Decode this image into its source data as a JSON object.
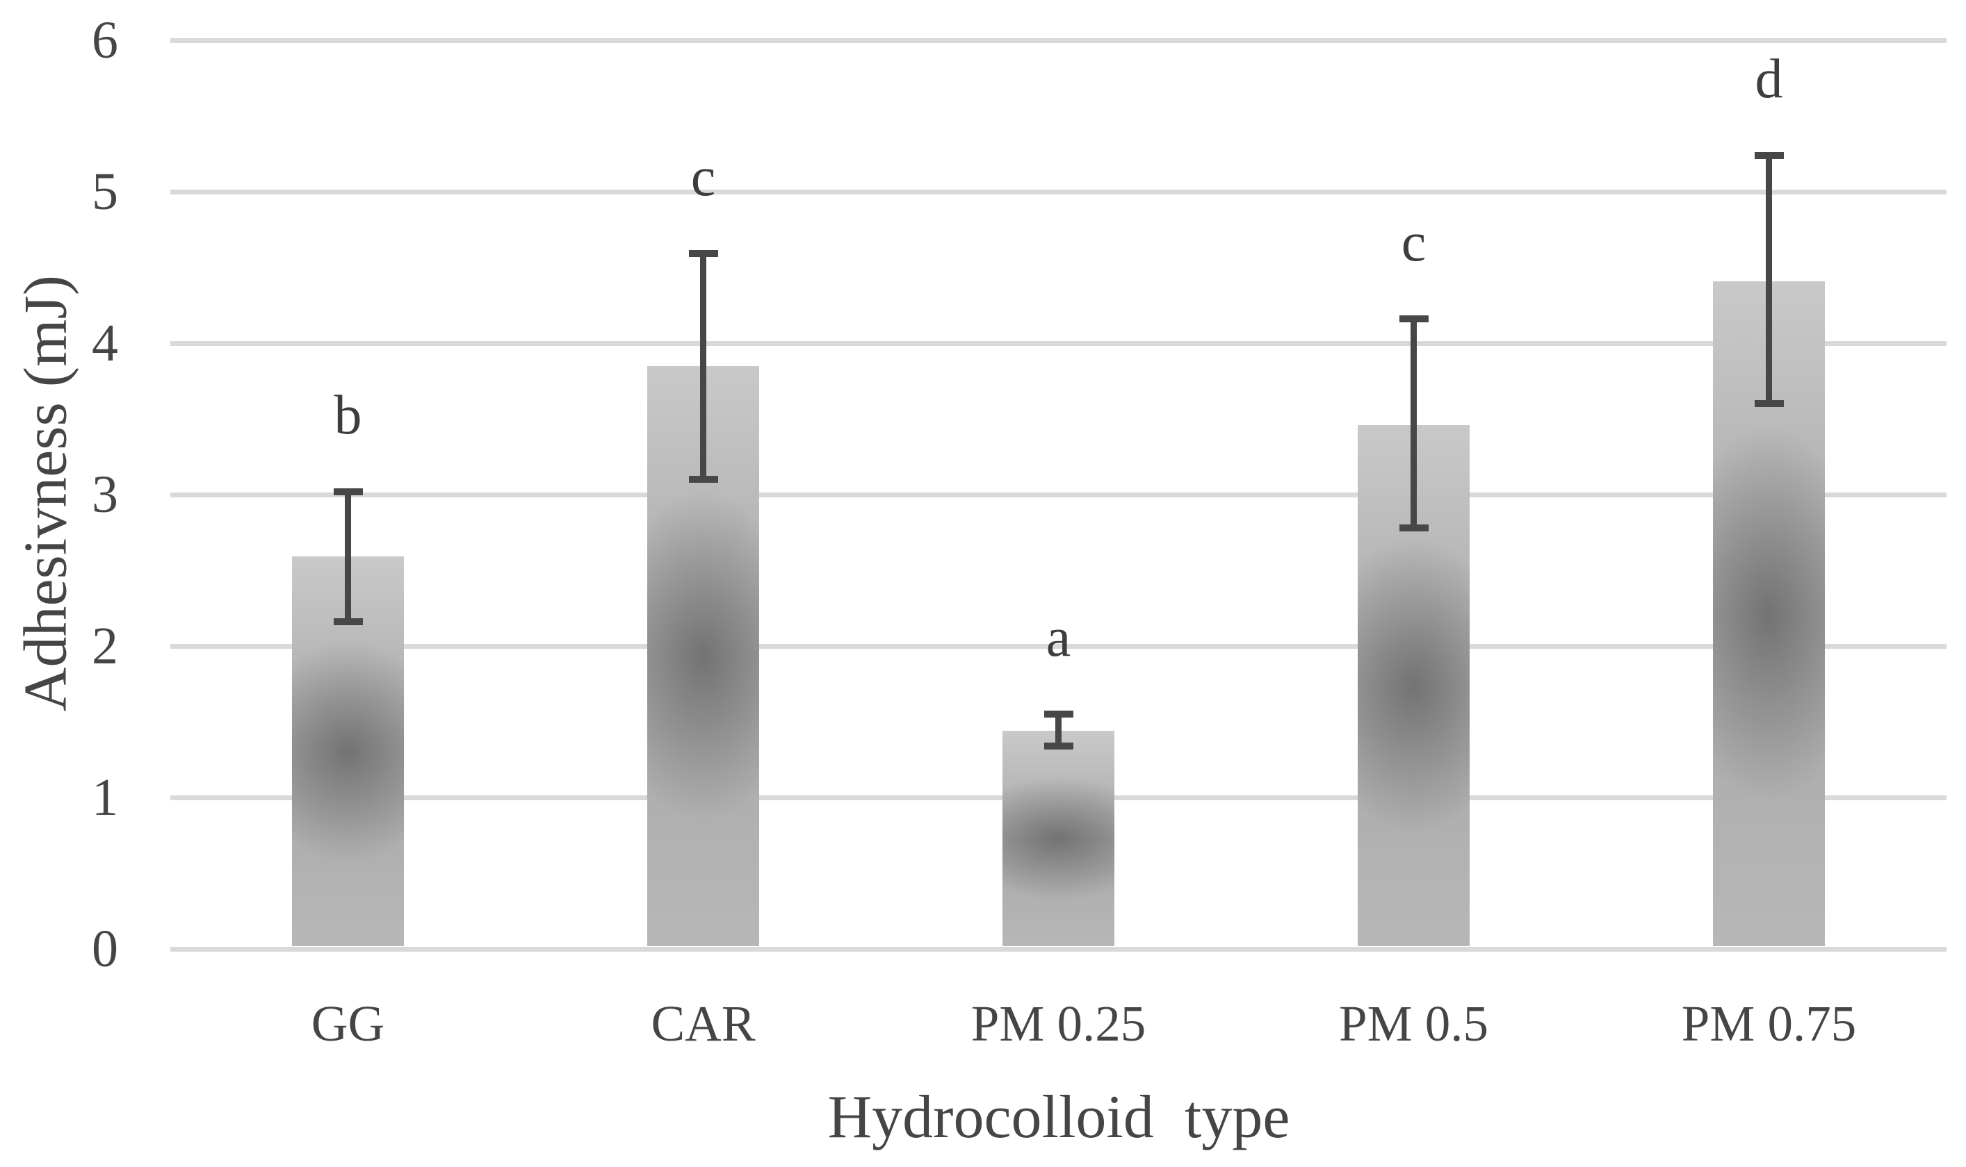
{
  "figure": {
    "background": "#ffffff",
    "y_axis": {
      "title": "Adhesivness (mJ)",
      "tick_labels": [
        "0",
        "1",
        "2",
        "3",
        "4",
        "5",
        "6"
      ]
    },
    "x_axis": {
      "title": "Hydrocolloid  type"
    },
    "colors": {
      "gridline": "#d9d9d9",
      "text": "#454545",
      "error_bar": "#474747",
      "bar_light": "#c9c9c9",
      "bar_mid_dark": "#7e7e7e",
      "bar_bottom": "#b7b7b7"
    }
  },
  "chart_data": {
    "type": "bar",
    "title": "",
    "xlabel": "Hydrocolloid type",
    "ylabel": "Adhesivness (mJ)",
    "categories": [
      "GG",
      "CAR",
      "PM 0.25",
      "PM 0.5",
      "PM 0.75"
    ],
    "values": [
      2.59,
      3.85,
      1.44,
      3.46,
      4.41
    ],
    "error_upper": [
      3.02,
      4.59,
      1.55,
      4.16,
      5.24
    ],
    "error_lower": [
      2.16,
      3.1,
      1.34,
      2.78,
      3.6
    ],
    "significance_letters": [
      "b",
      "c",
      "a",
      "c",
      "d"
    ],
    "ylim": [
      0,
      6
    ],
    "yticks": [
      0,
      1,
      2,
      3,
      4,
      5,
      6
    ],
    "grid": "horizontal-only",
    "legend": "none",
    "bar_fill": "gray gradient with darker blurred center"
  }
}
